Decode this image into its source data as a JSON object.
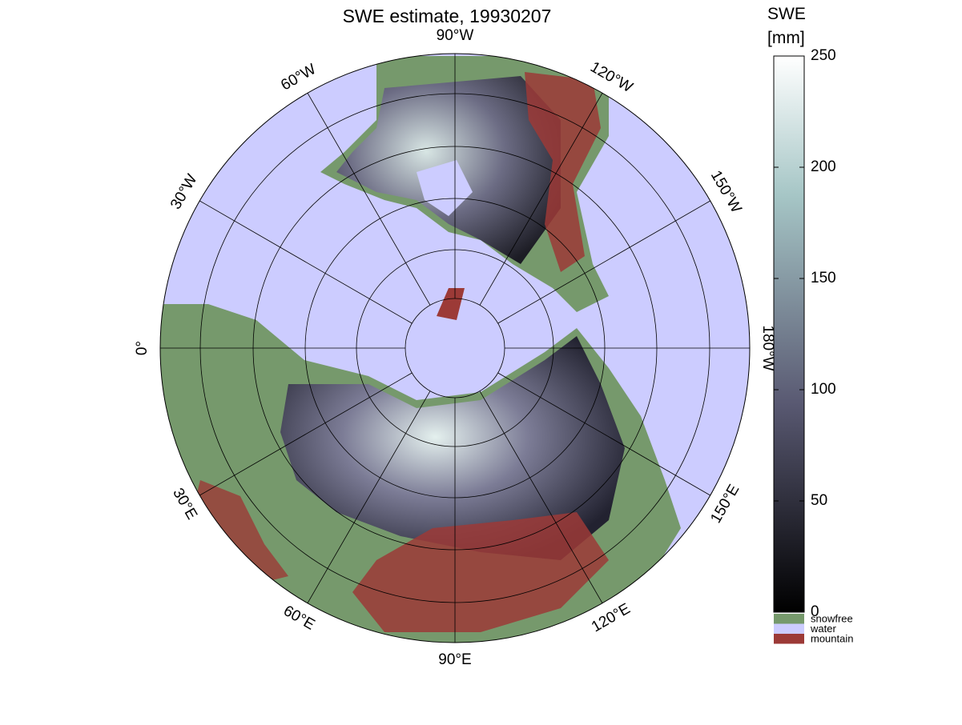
{
  "title": "SWE estimate, 19930207",
  "meridian_labels": [
    {
      "value": -90,
      "label": "90°W"
    },
    {
      "value": -120,
      "label": "120°W"
    },
    {
      "value": -150,
      "label": "150°W"
    },
    {
      "value": -180,
      "label": "180°W"
    },
    {
      "value": 150,
      "label": "150°E"
    },
    {
      "value": 120,
      "label": "120°E"
    },
    {
      "value": 90,
      "label": "90°E"
    },
    {
      "value": 60,
      "label": "60°E"
    },
    {
      "value": 30,
      "label": "30°E"
    },
    {
      "value": 0,
      "label": "0°"
    },
    {
      "value": -30,
      "label": "30°W"
    },
    {
      "value": -60,
      "label": "60°W"
    }
  ],
  "colorbar": {
    "label": [
      "SWE",
      "[mm]"
    ],
    "lim": [
      0,
      250
    ],
    "ticks": [
      0,
      50,
      100,
      150,
      200,
      250
    ]
  },
  "legend": [
    {
      "name": "snowfree",
      "color": "#76996c"
    },
    {
      "name": "water",
      "color": "#ccccff"
    },
    {
      "name": "mountain",
      "color": "#9c3a37"
    }
  ]
}
